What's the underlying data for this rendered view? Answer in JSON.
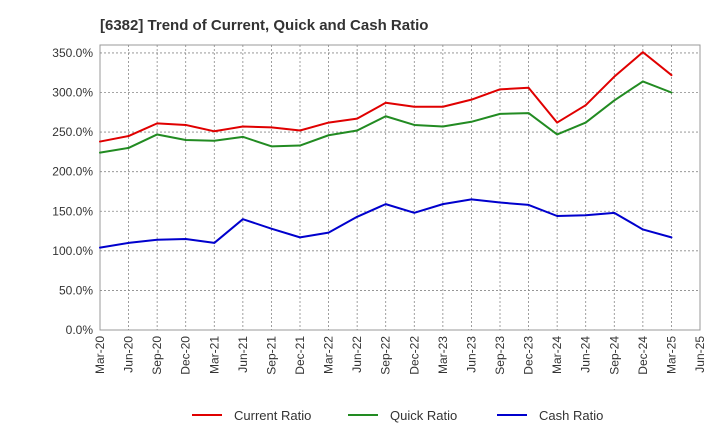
{
  "chart_data": {
    "type": "line",
    "title": "[6382]  Trend of Current, Quick and Cash Ratio",
    "xlabel": "",
    "ylabel": "",
    "ylim": [
      0,
      360
    ],
    "y_ticks": [
      0,
      50,
      100,
      150,
      200,
      250,
      300,
      350
    ],
    "y_tick_labels": [
      "0.0%",
      "50.0%",
      "100.0%",
      "150.0%",
      "200.0%",
      "250.0%",
      "300.0%",
      "350.0%"
    ],
    "grid": true,
    "legend_position": "bottom",
    "categories": [
      "Mar-20",
      "Jun-20",
      "Sep-20",
      "Dec-20",
      "Mar-21",
      "Jun-21",
      "Sep-21",
      "Dec-21",
      "Mar-22",
      "Jun-22",
      "Sep-22",
      "Dec-22",
      "Mar-23",
      "Jun-23",
      "Sep-23",
      "Dec-23",
      "Mar-24",
      "Jun-24",
      "Sep-24",
      "Dec-24",
      "Mar-25",
      "Jun-25"
    ],
    "series": [
      {
        "name": "Current Ratio",
        "color": "#e00000",
        "values": [
          238,
          245,
          261,
          259,
          251,
          257,
          256,
          252,
          262,
          267,
          287,
          282,
          282,
          291,
          304,
          306,
          262,
          284,
          320,
          351,
          322,
          null
        ]
      },
      {
        "name": "Quick Ratio",
        "color": "#228b22",
        "values": [
          224,
          230,
          247,
          240,
          239,
          244,
          232,
          233,
          246,
          252,
          270,
          259,
          257,
          263,
          273,
          274,
          247,
          262,
          290,
          314,
          300,
          null
        ]
      },
      {
        "name": "Cash Ratio",
        "color": "#0000cd",
        "values": [
          104,
          110,
          114,
          115,
          110,
          140,
          128,
          117,
          123,
          143,
          159,
          148,
          159,
          165,
          161,
          158,
          144,
          145,
          148,
          127,
          117,
          null
        ]
      }
    ]
  }
}
